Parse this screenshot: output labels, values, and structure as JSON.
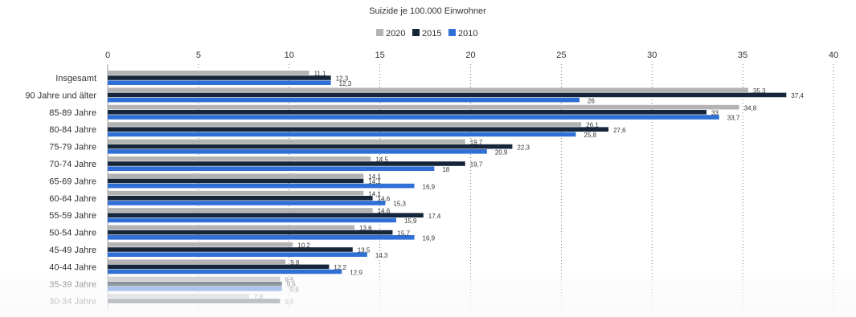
{
  "chart_data": {
    "type": "bar",
    "orientation": "horizontal",
    "title": "Suizide je 100.000 Einwohner",
    "xlim": [
      0,
      40
    ],
    "xticks": [
      0,
      5,
      10,
      15,
      20,
      25,
      30,
      35,
      40
    ],
    "grid": "vertical dotted",
    "legend_position": "top-center",
    "categories": [
      "Insgesamt",
      "90 Jahre und älter",
      "85-89 Jahre",
      "80-84 Jahre",
      "75-79 Jahre",
      "70-74 Jahre",
      "65-69 Jahre",
      "60-64 Jahre",
      "55-59 Jahre",
      "50-54 Jahre",
      "45-49 Jahre",
      "40-44 Jahre",
      "35-39 Jahre",
      "30-34 Jahre"
    ],
    "series": [
      {
        "name": "2020",
        "color": "#b3b3b3",
        "values": [
          11.1,
          35.3,
          34.8,
          26.1,
          19.7,
          14.5,
          14.1,
          14.1,
          14.6,
          13.6,
          10.2,
          9.8,
          9.5,
          7.8
        ],
        "labels": [
          "11,1",
          "35,3",
          "34,8",
          "26,1",
          "19,7",
          "14,5",
          "14,1",
          "14,1",
          "14,6",
          "13,6",
          "10,2",
          "9,8",
          "9,5",
          "7,8"
        ]
      },
      {
        "name": "2015",
        "color": "#16263a",
        "values": [
          12.3,
          37.4,
          33,
          27.6,
          22.3,
          19.7,
          14.1,
          14.6,
          17.4,
          15.7,
          13.5,
          12.2,
          9.6,
          9.5
        ],
        "labels": [
          "12,3",
          "37,4",
          "33",
          "27,6",
          "22,3",
          "19,7",
          "14,1",
          "14,6",
          "17,4",
          "15,7",
          "13,5",
          "12,2",
          "9,6",
          "9,5"
        ]
      },
      {
        "name": "2010",
        "color": "#2f6fd6",
        "values": [
          12.3,
          26,
          33.7,
          25.8,
          20.9,
          18,
          16.9,
          15.3,
          15.9,
          16.9,
          14.3,
          12.9,
          9.6,
          null
        ],
        "labels": [
          "12,3",
          "26",
          "33,7",
          "25,8",
          "20,9",
          "18",
          "16,9",
          "15,3",
          "15,9",
          "16,9",
          "14,3",
          "12,9",
          "9,6",
          ""
        ]
      }
    ]
  }
}
